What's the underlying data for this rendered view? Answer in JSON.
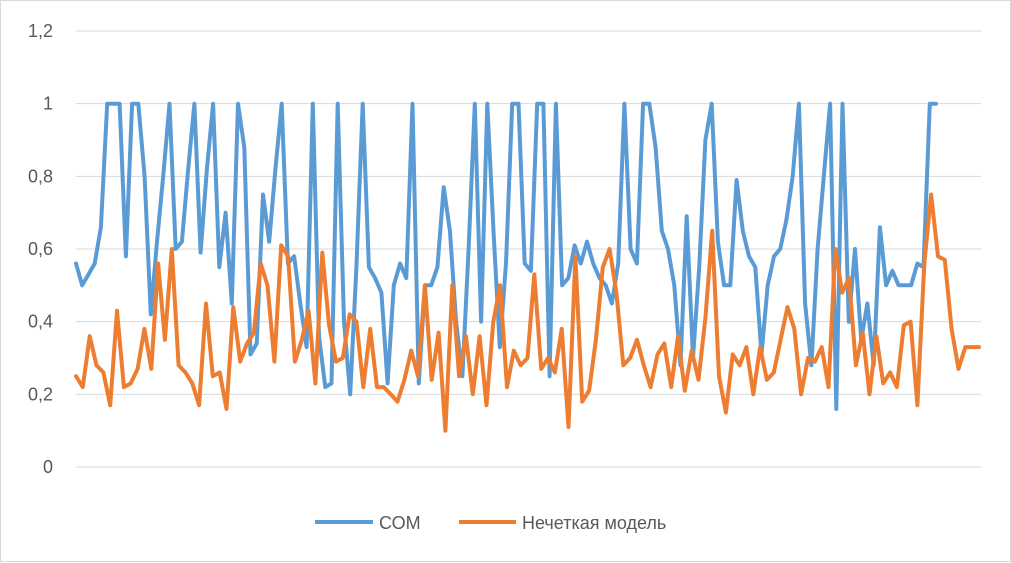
{
  "chart_data": {
    "type": "line",
    "title": "",
    "xlabel": "",
    "ylabel": "",
    "ylim": [
      0,
      1.2
    ],
    "y_ticks": [
      "0",
      "0,2",
      "0,4",
      "0,6",
      "0,8",
      "1",
      "1,2"
    ],
    "y_tick_values": [
      0,
      0.2,
      0.4,
      0.6,
      0.8,
      1.0,
      1.2
    ],
    "grid": true,
    "legend_position": "bottom",
    "series": [
      {
        "name": "СОМ",
        "color": "#5b9bd5",
        "values": [
          0.56,
          0.5,
          0.53,
          0.56,
          0.66,
          1,
          1,
          1,
          0.58,
          1,
          1,
          0.8,
          0.42,
          0.62,
          0.8,
          1,
          0.6,
          0.62,
          0.82,
          1,
          0.59,
          0.82,
          1,
          0.55,
          0.7,
          0.45,
          1,
          0.88,
          0.31,
          0.34,
          0.75,
          0.62,
          0.82,
          1,
          0.56,
          0.58,
          0.45,
          0.33,
          1,
          0.36,
          0.22,
          0.23,
          1,
          0.4,
          0.2,
          0.55,
          1,
          0.55,
          0.52,
          0.48,
          0.23,
          0.5,
          0.56,
          0.52,
          1,
          0.23,
          0.5,
          0.5,
          0.55,
          0.77,
          0.65,
          0.4,
          0.25,
          0.6,
          1,
          0.4,
          1,
          0.65,
          0.33,
          0.56,
          1,
          1,
          0.56,
          0.54,
          1,
          1,
          0.25,
          1,
          0.5,
          0.52,
          0.61,
          0.56,
          0.62,
          0.56,
          0.52,
          0.5,
          0.45,
          0.56,
          1,
          0.6,
          0.56,
          1,
          1,
          0.88,
          0.65,
          0.6,
          0.5,
          0.28,
          0.69,
          0.3,
          0.55,
          0.9,
          1,
          0.62,
          0.5,
          0.5,
          0.79,
          0.65,
          0.58,
          0.55,
          0.31,
          0.5,
          0.58,
          0.6,
          0.68,
          0.8,
          1,
          0.45,
          0.28,
          0.6,
          0.8,
          1,
          0.16,
          1,
          0.4,
          0.6,
          0.35,
          0.45,
          0.28,
          0.66,
          0.5,
          0.54,
          0.5,
          0.5,
          0.5,
          0.56,
          0.55,
          1,
          1
        ]
      },
      {
        "name": "Нечеткая модель",
        "color": "#ed7d31",
        "values": [
          0.25,
          0.22,
          0.36,
          0.28,
          0.26,
          0.17,
          0.43,
          0.22,
          0.23,
          0.27,
          0.38,
          0.27,
          0.56,
          0.35,
          0.6,
          0.28,
          0.26,
          0.23,
          0.17,
          0.45,
          0.25,
          0.26,
          0.16,
          0.44,
          0.29,
          0.34,
          0.37,
          0.56,
          0.5,
          0.29,
          0.61,
          0.58,
          0.29,
          0.35,
          0.43,
          0.23,
          0.59,
          0.39,
          0.29,
          0.3,
          0.42,
          0.4,
          0.22,
          0.38,
          0.22,
          0.22,
          0.2,
          0.18,
          0.24,
          0.32,
          0.25,
          0.5,
          0.24,
          0.37,
          0.1,
          0.5,
          0.25,
          0.36,
          0.2,
          0.36,
          0.17,
          0.4,
          0.5,
          0.22,
          0.32,
          0.28,
          0.3,
          0.53,
          0.27,
          0.3,
          0.26,
          0.38,
          0.11,
          0.58,
          0.18,
          0.21,
          0.35,
          0.55,
          0.6,
          0.48,
          0.28,
          0.3,
          0.35,
          0.28,
          0.22,
          0.31,
          0.34,
          0.22,
          0.36,
          0.21,
          0.32,
          0.24,
          0.41,
          0.65,
          0.25,
          0.15,
          0.31,
          0.28,
          0.33,
          0.2,
          0.33,
          0.24,
          0.26,
          0.35,
          0.44,
          0.38,
          0.2,
          0.3,
          0.29,
          0.33,
          0.22,
          0.6,
          0.48,
          0.52,
          0.28,
          0.37,
          0.2,
          0.36,
          0.23,
          0.26,
          0.22,
          0.39,
          0.4,
          0.17,
          0.56,
          0.75,
          0.58,
          0.57,
          0.38,
          0.27,
          0.33,
          0.33,
          0.33
        ]
      }
    ]
  }
}
